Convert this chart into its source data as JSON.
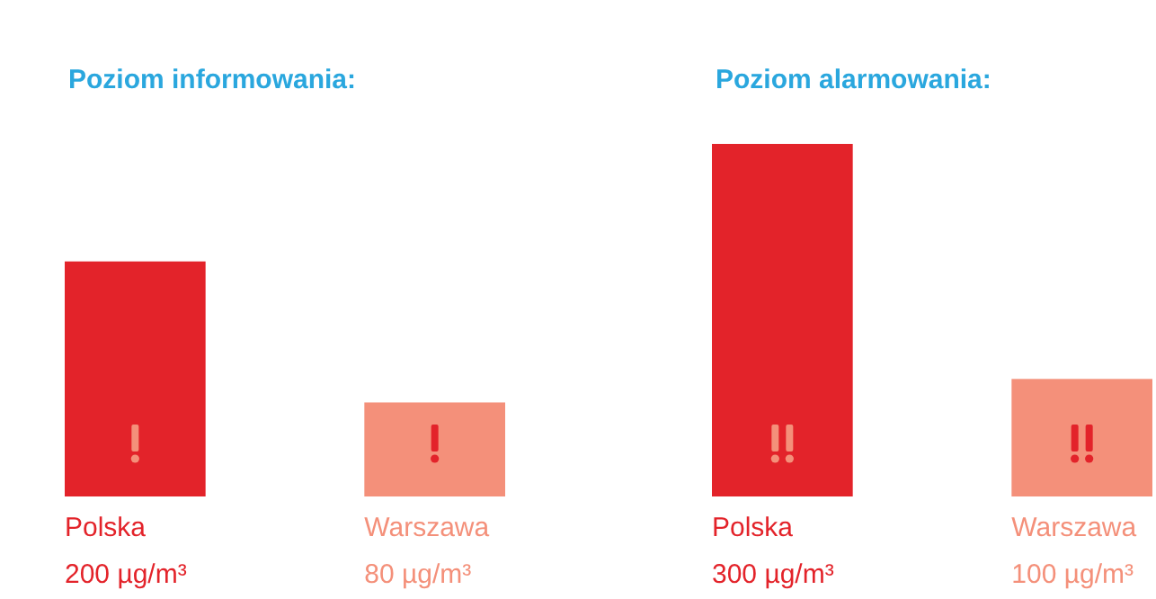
{
  "chart_data": [
    {
      "type": "bar",
      "title": "Poziom informowania:",
      "categories": [
        "Polska",
        "Warszawa"
      ],
      "values": [
        200,
        80
      ],
      "colors": [
        "#e3232a",
        "#f4907a"
      ],
      "value_labels": [
        "200 µg/m³",
        "80 µg/m³"
      ]
    },
    {
      "type": "bar",
      "title": "Poziom alarmowania:",
      "categories": [
        "Polska",
        "Warszawa"
      ],
      "values": [
        300,
        100
      ],
      "colors": [
        "#e3232a",
        "#f4907a"
      ],
      "value_labels": [
        "300 µg/m³",
        "100 µg/m³"
      ]
    }
  ]
}
